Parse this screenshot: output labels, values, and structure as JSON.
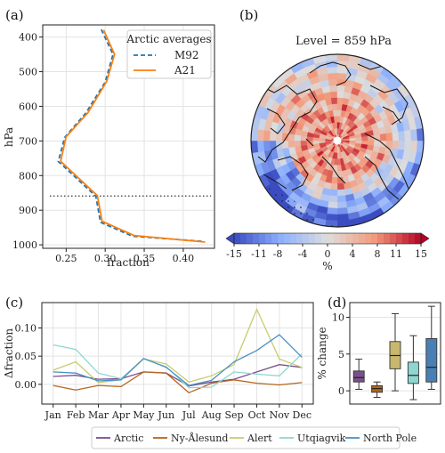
{
  "chart_data": [
    {
      "panel": "(a)",
      "type": "line",
      "xlabel": "fraction",
      "ylabel": "hPa",
      "xlim": [
        0.22,
        0.44
      ],
      "ylim": [
        1010,
        365
      ],
      "y_inverted": true,
      "xticks": [
        0.25,
        0.3,
        0.35,
        0.4
      ],
      "xtick_labels": [
        "0.25",
        "0.30",
        "0.35",
        "0.40"
      ],
      "yticks": [
        400,
        500,
        600,
        700,
        800,
        900,
        1000
      ],
      "ytick_labels": [
        "400",
        "500",
        "600",
        "700",
        "800",
        "900",
        "1000"
      ],
      "grid": true,
      "legend": {
        "title": "Arctic averages",
        "placement": "top-right"
      },
      "reference_level_hPa": 859,
      "series": [
        {
          "name": "M92",
          "color": "#1f77b4",
          "dash": true,
          "x": [
            0.295,
            0.31,
            0.3,
            0.275,
            0.248,
            0.24,
            0.243,
            0.288,
            0.294,
            0.335,
            0.425
          ],
          "y": [
            378,
            450,
            530,
            620,
            690,
            760,
            765,
            860,
            935,
            975,
            990
          ]
        },
        {
          "name": "A21",
          "color": "#ff7f0e",
          "dash": false,
          "x": [
            0.298,
            0.312,
            0.302,
            0.278,
            0.25,
            0.243,
            0.245,
            0.29,
            0.296,
            0.337,
            0.428
          ],
          "y": [
            380,
            450,
            528,
            618,
            688,
            758,
            763,
            858,
            932,
            973,
            992
          ]
        }
      ]
    },
    {
      "panel": "(b)",
      "type": "heatmap",
      "title": "Level = 859 hPa",
      "projection": "north-polar-stereographic",
      "colorbar": {
        "label": "%",
        "ticks": [
          -15,
          -11,
          -8,
          -4,
          0,
          4,
          8,
          11,
          15
        ],
        "tick_labels": [
          "-15",
          "-11",
          "-8",
          "-4",
          "0",
          "4",
          "8",
          "11",
          "15"
        ],
        "cmap": "coolwarm",
        "extend": "both",
        "min": -15,
        "max": 15
      },
      "stippling": "Atlantic sector / North Atlantic"
    },
    {
      "panel": "(c)",
      "type": "line",
      "ylabel": "Δfraction",
      "categories": [
        "Jan",
        "Feb",
        "Mar",
        "Apr",
        "May",
        "Jun",
        "Jul",
        "Aug",
        "Sep",
        "Oct",
        "Nov",
        "Dec"
      ],
      "ylim": [
        -0.035,
        0.145
      ],
      "yticks": [
        0.0,
        0.05,
        0.1
      ],
      "ytick_labels": [
        "0.00",
        "0.05",
        "0.10"
      ],
      "grid": true,
      "legend": {
        "placement": "bottom",
        "ncol": 5
      },
      "series": [
        {
          "name": "Arctic",
          "color": "#7b4f8c",
          "values": [
            0.014,
            0.016,
            0.009,
            0.01,
            0.022,
            0.02,
            -0.003,
            0.004,
            0.009,
            0.022,
            0.035,
            0.03
          ]
        },
        {
          "name": "Ny-Ålesund",
          "color": "#b5651d",
          "values": [
            -0.002,
            -0.01,
            -0.002,
            -0.004,
            0.022,
            0.02,
            -0.015,
            0.002,
            0.008,
            0.002,
            -0.001,
            0.003
          ]
        },
        {
          "name": "Alert",
          "color": "#c8cc6d",
          "values": [
            0.025,
            0.04,
            0.003,
            0.008,
            0.045,
            0.036,
            0.004,
            0.015,
            0.035,
            0.133,
            0.045,
            0.03
          ]
        },
        {
          "name": "Utqiagvik",
          "color": "#8fd6d0",
          "values": [
            0.07,
            0.062,
            0.02,
            0.01,
            0.045,
            0.031,
            -0.006,
            -0.005,
            0.022,
            0.018,
            0.015,
            0.054
          ]
        },
        {
          "name": "North Pole",
          "color": "#4a90c4",
          "values": [
            0.022,
            0.02,
            0.006,
            0.008,
            0.046,
            0.03,
            -0.002,
            0.007,
            0.04,
            0.06,
            0.088,
            0.048
          ]
        }
      ]
    },
    {
      "panel": "(d)",
      "type": "box",
      "ylabel": "% change",
      "ylim": [
        -1.8,
        12.0
      ],
      "yticks": [
        0,
        5,
        10
      ],
      "ytick_labels": [
        "0",
        "5",
        "10"
      ],
      "grid": true,
      "boxes": [
        {
          "name": "Arctic",
          "color": "#7b4f8c",
          "whislo": 0.2,
          "q1": 1.2,
          "median": 1.8,
          "q3": 2.7,
          "whishi": 4.3
        },
        {
          "name": "Ny-Ålesund",
          "color": "#b5651d",
          "whislo": -0.9,
          "q1": -0.2,
          "median": 0.3,
          "q3": 0.7,
          "whishi": 1.2
        },
        {
          "name": "Alert",
          "color": "#c8b86d",
          "whislo": 0.0,
          "q1": 3.0,
          "median": 4.8,
          "q3": 6.7,
          "whishi": 10.5
        },
        {
          "name": "Utqiagvik",
          "color": "#8fd6d0",
          "whislo": -1.2,
          "q1": 1.0,
          "median": 2.1,
          "q3": 3.9,
          "whishi": 7.5
        },
        {
          "name": "North Pole",
          "color": "#4a7fb4",
          "whislo": 0.2,
          "q1": 1.2,
          "median": 3.2,
          "q3": 7.1,
          "whishi": 11.5
        }
      ]
    }
  ]
}
